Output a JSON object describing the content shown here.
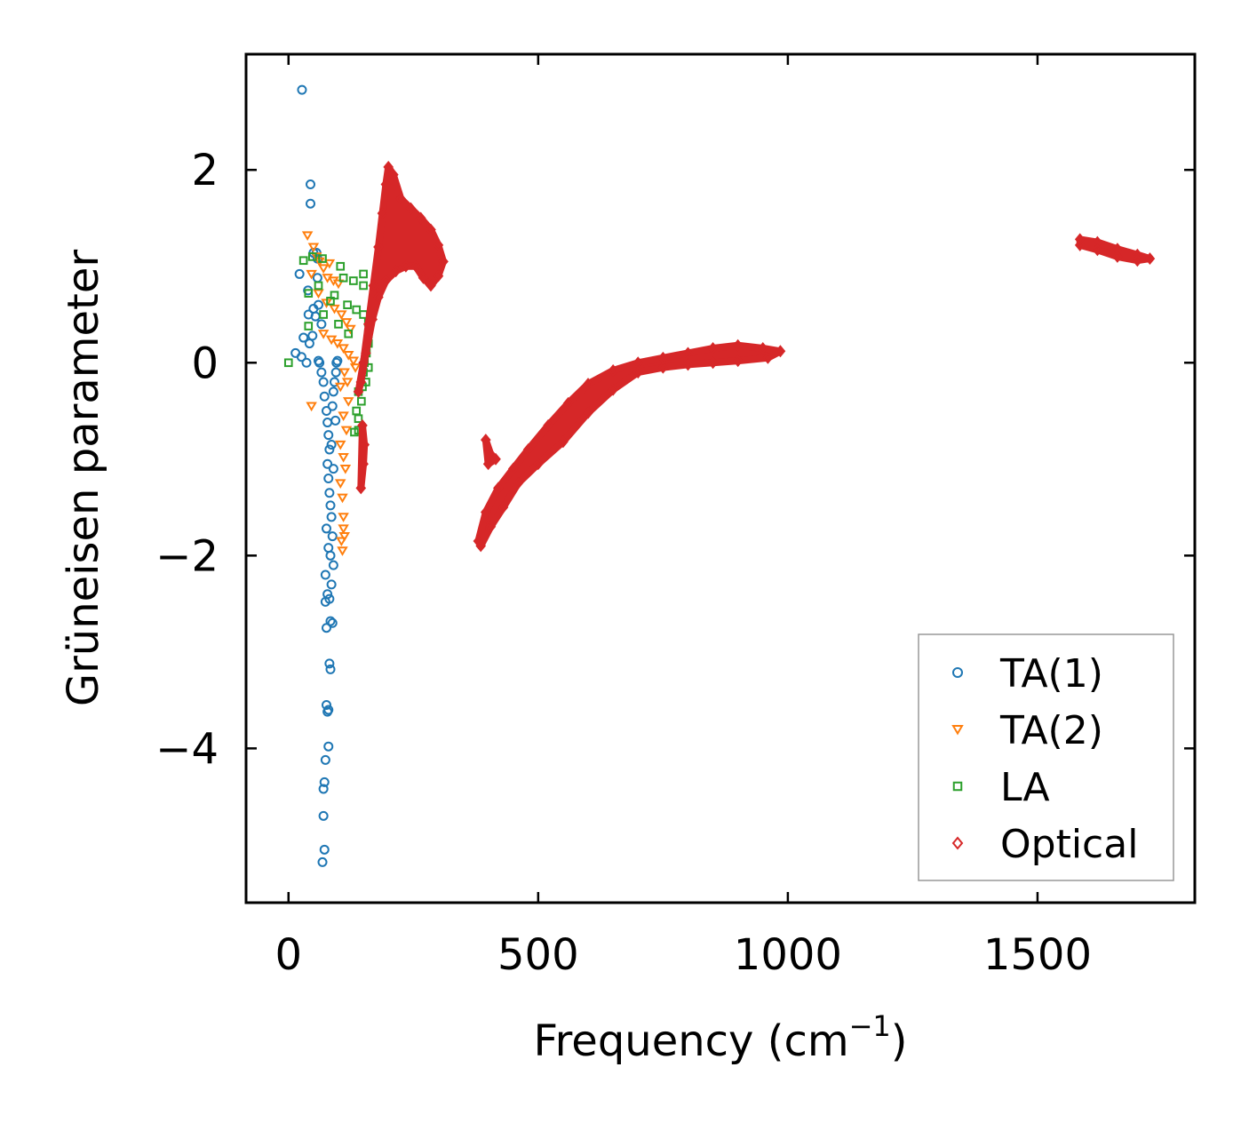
{
  "chart_data": {
    "type": "scatter",
    "title": "",
    "xlabel_main": "Frequency (cm",
    "xlabel_sup": "−1",
    "xlabel_end": ")",
    "ylabel": "Grüneisen parameter",
    "xlim": [
      -85,
      1815
    ],
    "ylim": [
      -5.6,
      3.2
    ],
    "xticks": [
      0,
      500,
      1000,
      1500
    ],
    "xtick_labels": [
      "0",
      "500",
      "1000",
      "1500"
    ],
    "yticks": [
      2,
      0,
      -2,
      -4
    ],
    "ytick_labels": [
      "2",
      "0",
      "−2",
      "−4"
    ],
    "grid": false,
    "legend_position": "bottom-right",
    "series": [
      {
        "name": "TA(1)",
        "marker": "circle",
        "color": "#1f77b4",
        "points": [
          [
            27,
            2.83
          ],
          [
            44,
            1.85
          ],
          [
            44,
            1.65
          ],
          [
            50,
            1.14
          ],
          [
            56,
            1.14
          ],
          [
            58,
            1.08
          ],
          [
            22,
            0.92
          ],
          [
            58,
            0.88
          ],
          [
            39,
            0.75
          ],
          [
            60,
            0.6
          ],
          [
            50,
            0.56
          ],
          [
            40,
            0.5
          ],
          [
            54,
            0.48
          ],
          [
            66,
            0.4
          ],
          [
            30,
            0.26
          ],
          [
            48,
            0.28
          ],
          [
            42,
            0.2
          ],
          [
            14,
            0.1
          ],
          [
            26,
            0.06
          ],
          [
            36,
            0.0
          ],
          [
            60,
            0.02
          ],
          [
            62,
            0.0
          ],
          [
            66,
            -0.1
          ],
          [
            70,
            -0.2
          ],
          [
            72,
            -0.35
          ],
          [
            76,
            -0.5
          ],
          [
            78,
            -0.62
          ],
          [
            80,
            -0.75
          ],
          [
            82,
            -0.9
          ],
          [
            78,
            -1.05
          ],
          [
            80,
            -1.2
          ],
          [
            82,
            -1.35
          ],
          [
            84,
            -1.48
          ],
          [
            86,
            -1.6
          ],
          [
            76,
            -1.72
          ],
          [
            88,
            -1.8
          ],
          [
            80,
            -1.92
          ],
          [
            84,
            -2.0
          ],
          [
            90,
            -2.1
          ],
          [
            74,
            -2.2
          ],
          [
            86,
            -2.3
          ],
          [
            78,
            -2.4
          ],
          [
            82,
            -2.45
          ],
          [
            74,
            -2.48
          ],
          [
            88,
            -2.7
          ],
          [
            76,
            -2.75
          ],
          [
            84,
            -2.68
          ],
          [
            82,
            -3.12
          ],
          [
            84,
            -3.18
          ],
          [
            76,
            -3.55
          ],
          [
            80,
            -3.6
          ],
          [
            78,
            -3.62
          ],
          [
            80,
            -3.98
          ],
          [
            74,
            -4.12
          ],
          [
            72,
            -4.35
          ],
          [
            70,
            -4.42
          ],
          [
            70,
            -4.7
          ],
          [
            72,
            -5.05
          ],
          [
            68,
            -5.18
          ],
          [
            90,
            -0.3
          ],
          [
            92,
            -0.2
          ],
          [
            95,
            -0.1
          ],
          [
            96,
            0.0
          ],
          [
            98,
            0.02
          ],
          [
            88,
            -0.45
          ],
          [
            86,
            -0.85
          ],
          [
            90,
            -1.1
          ],
          [
            94,
            -0.6
          ]
        ]
      },
      {
        "name": "TA(2)",
        "marker": "triangle",
        "color": "#ff7f0e",
        "points": [
          [
            38,
            1.32
          ],
          [
            50,
            1.2
          ],
          [
            56,
            1.1
          ],
          [
            62,
            1.05
          ],
          [
            82,
            1.03
          ],
          [
            70,
            0.98
          ],
          [
            46,
            0.92
          ],
          [
            78,
            0.88
          ],
          [
            90,
            0.85
          ],
          [
            100,
            0.82
          ],
          [
            60,
            0.72
          ],
          [
            76,
            0.62
          ],
          [
            92,
            0.56
          ],
          [
            106,
            0.5
          ],
          [
            116,
            0.42
          ],
          [
            124,
            0.35
          ],
          [
            70,
            0.3
          ],
          [
            86,
            0.24
          ],
          [
            98,
            0.2
          ],
          [
            110,
            0.15
          ],
          [
            120,
            0.08
          ],
          [
            130,
            0.02
          ],
          [
            134,
            -0.05
          ],
          [
            112,
            -0.1
          ],
          [
            118,
            -0.2
          ],
          [
            104,
            -0.25
          ],
          [
            46,
            -0.45
          ],
          [
            120,
            -0.4
          ],
          [
            110,
            -0.55
          ],
          [
            116,
            -0.7
          ],
          [
            104,
            -0.85
          ],
          [
            110,
            -0.98
          ],
          [
            114,
            -1.1
          ],
          [
            104,
            -1.25
          ],
          [
            108,
            -1.4
          ],
          [
            110,
            -1.6
          ],
          [
            110,
            -1.72
          ],
          [
            112,
            -1.8
          ],
          [
            106,
            -1.85
          ],
          [
            108,
            -1.95
          ]
        ]
      },
      {
        "name": "LA",
        "marker": "square",
        "color": "#2ca02c",
        "points": [
          [
            0,
            0.0
          ],
          [
            30,
            1.06
          ],
          [
            48,
            1.1
          ],
          [
            68,
            1.08
          ],
          [
            104,
            1.0
          ],
          [
            150,
            0.92
          ],
          [
            110,
            0.88
          ],
          [
            130,
            0.85
          ],
          [
            150,
            0.8
          ],
          [
            60,
            0.8
          ],
          [
            40,
            0.72
          ],
          [
            92,
            0.7
          ],
          [
            118,
            0.6
          ],
          [
            136,
            0.55
          ],
          [
            150,
            0.5
          ],
          [
            160,
            0.42
          ],
          [
            160,
            0.3
          ],
          [
            160,
            0.2
          ],
          [
            156,
            0.1
          ],
          [
            152,
            0.0
          ],
          [
            160,
            -0.05
          ],
          [
            150,
            -0.1
          ],
          [
            155,
            -0.2
          ],
          [
            148,
            -0.25
          ],
          [
            140,
            -0.3
          ],
          [
            146,
            -0.4
          ],
          [
            136,
            -0.5
          ],
          [
            140,
            -0.58
          ],
          [
            140,
            -0.7
          ],
          [
            132,
            -0.72
          ],
          [
            40,
            0.38
          ],
          [
            70,
            0.5
          ],
          [
            100,
            0.4
          ],
          [
            120,
            0.3
          ],
          [
            84,
            0.64
          ]
        ]
      },
      {
        "name": "Optical",
        "marker": "diamond",
        "color": "#d62728",
        "segments": [
          [
            [
              140,
              -0.3
            ],
            [
              150,
              0.0
            ],
            [
              160,
              0.4
            ],
            [
              170,
              0.8
            ],
            [
              180,
              1.2
            ],
            [
              188,
              1.55
            ],
            [
              195,
              1.85
            ],
            [
              200,
              2.03
            ],
            [
              210,
              1.95
            ],
            [
              225,
              1.7
            ],
            [
              245,
              1.6
            ],
            [
              265,
              1.5
            ],
            [
              285,
              1.38
            ],
            [
              300,
              1.22
            ],
            [
              310,
              1.05
            ],
            [
              300,
              0.9
            ],
            [
              285,
              0.8
            ],
            [
              270,
              0.88
            ],
            [
              255,
              1.0
            ],
            [
              235,
              1.0
            ],
            [
              215,
              0.95
            ],
            [
              195,
              0.85
            ],
            [
              180,
              0.68
            ],
            [
              168,
              0.45
            ],
            [
              155,
              0.1
            ],
            [
              145,
              -0.2
            ]
          ],
          [
            [
              145,
              -1.3
            ],
            [
              150,
              -1.05
            ],
            [
              152,
              -0.85
            ],
            [
              148,
              -0.65
            ]
          ],
          [
            [
              380,
              -1.85
            ],
            [
              395,
              -1.55
            ],
            [
              420,
              -1.3
            ],
            [
              450,
              -1.1
            ],
            [
              480,
              -0.9
            ],
            [
              520,
              -0.65
            ],
            [
              560,
              -0.42
            ],
            [
              600,
              -0.22
            ],
            [
              650,
              -0.08
            ],
            [
              700,
              0.0
            ],
            [
              750,
              0.05
            ],
            [
              800,
              0.1
            ],
            [
              850,
              0.15
            ],
            [
              900,
              0.18
            ],
            [
              950,
              0.15
            ],
            [
              985,
              0.12
            ],
            [
              960,
              0.05
            ],
            [
              900,
              0.02
            ],
            [
              850,
              0.0
            ],
            [
              800,
              -0.02
            ],
            [
              750,
              -0.05
            ],
            [
              700,
              -0.1
            ],
            [
              650,
              -0.28
            ],
            [
              600,
              -0.52
            ],
            [
              550,
              -0.82
            ],
            [
              500,
              -1.05
            ],
            [
              460,
              -1.25
            ],
            [
              430,
              -1.5
            ],
            [
              405,
              -1.7
            ],
            [
              385,
              -1.9
            ]
          ],
          [
            [
              395,
              -0.8
            ],
            [
              405,
              -0.95
            ],
            [
              415,
              -1.0
            ],
            [
              400,
              -1.05
            ]
          ],
          [
            [
              1585,
              1.28
            ],
            [
              1620,
              1.25
            ],
            [
              1660,
              1.18
            ],
            [
              1700,
              1.12
            ],
            [
              1725,
              1.08
            ],
            [
              1700,
              1.06
            ],
            [
              1660,
              1.1
            ],
            [
              1620,
              1.17
            ],
            [
              1585,
              1.22
            ]
          ]
        ]
      }
    ]
  }
}
